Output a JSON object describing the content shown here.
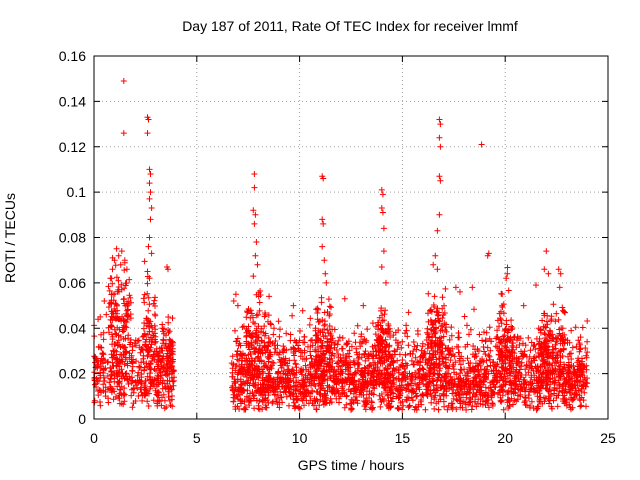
{
  "chart_data": {
    "type": "scatter",
    "title": "Day 187 of 2011, Rate Of TEC Index for receiver lmmf",
    "xlabel": "GPS time / hours",
    "ylabel": "ROTI / TECUs",
    "xlim": [
      0,
      24
    ],
    "ylim": [
      0,
      0.16
    ],
    "xticks": [
      "0",
      "5",
      "10",
      "15",
      "20",
      "25"
    ],
    "yticks": [
      "0",
      "0.02",
      "0.04",
      "0.06",
      "0.08",
      "0.1",
      "0.12",
      "0.14",
      "0.16"
    ],
    "grid": true,
    "marker": "+",
    "color": "#ff0000",
    "gaps_hours": [
      [
        3.9,
        6.7
      ]
    ],
    "points": [
      [
        1.45,
        0.149
      ],
      [
        1.45,
        0.126
      ],
      [
        2.6,
        0.133
      ],
      [
        2.65,
        0.132
      ],
      [
        2.6,
        0.126
      ],
      [
        2.7,
        0.11
      ],
      [
        2.75,
        0.108
      ],
      [
        2.7,
        0.104
      ],
      [
        2.75,
        0.1
      ],
      [
        2.7,
        0.097
      ],
      [
        2.8,
        0.093
      ],
      [
        2.75,
        0.088
      ],
      [
        2.7,
        0.08
      ],
      [
        2.65,
        0.076
      ],
      [
        2.8,
        0.073
      ],
      [
        2.6,
        0.065
      ],
      [
        2.7,
        0.062
      ],
      [
        3.55,
        0.067
      ],
      [
        3.6,
        0.066
      ],
      [
        1.1,
        0.075
      ],
      [
        1.2,
        0.072
      ],
      [
        1.0,
        0.07
      ],
      [
        1.3,
        0.068
      ],
      [
        1.35,
        0.074
      ],
      [
        1.5,
        0.07
      ],
      [
        0.9,
        0.066
      ],
      [
        0.8,
        0.062
      ],
      [
        1.6,
        0.066
      ],
      [
        0.5,
        0.052
      ],
      [
        0.3,
        0.045
      ],
      [
        0.2,
        0.044
      ],
      [
        0.6,
        0.046
      ],
      [
        7.8,
        0.108
      ],
      [
        7.8,
        0.102
      ],
      [
        7.75,
        0.092
      ],
      [
        7.85,
        0.09
      ],
      [
        7.8,
        0.086
      ],
      [
        7.9,
        0.078
      ],
      [
        7.85,
        0.072
      ],
      [
        7.95,
        0.068
      ],
      [
        7.75,
        0.063
      ],
      [
        6.9,
        0.055
      ],
      [
        6.8,
        0.052
      ],
      [
        7.0,
        0.05
      ],
      [
        11.1,
        0.107
      ],
      [
        11.15,
        0.106
      ],
      [
        11.1,
        0.088
      ],
      [
        11.15,
        0.086
      ],
      [
        11.1,
        0.076
      ],
      [
        11.2,
        0.07
      ],
      [
        11.25,
        0.064
      ],
      [
        11.3,
        0.06
      ],
      [
        14.0,
        0.101
      ],
      [
        14.05,
        0.099
      ],
      [
        14.0,
        0.093
      ],
      [
        14.05,
        0.091
      ],
      [
        14.1,
        0.084
      ],
      [
        14.1,
        0.074
      ],
      [
        14.0,
        0.067
      ],
      [
        14.2,
        0.06
      ],
      [
        16.8,
        0.132
      ],
      [
        16.85,
        0.13
      ],
      [
        16.8,
        0.124
      ],
      [
        16.85,
        0.12
      ],
      [
        16.8,
        0.107
      ],
      [
        16.85,
        0.105
      ],
      [
        16.8,
        0.09
      ],
      [
        16.7,
        0.083
      ],
      [
        16.6,
        0.072
      ],
      [
        16.5,
        0.068
      ],
      [
        16.7,
        0.066
      ],
      [
        18.85,
        0.121
      ],
      [
        19.2,
        0.073
      ],
      [
        19.15,
        0.072
      ],
      [
        18.4,
        0.058
      ],
      [
        20.1,
        0.064
      ],
      [
        20.05,
        0.062
      ],
      [
        22.0,
        0.074
      ],
      [
        21.9,
        0.066
      ],
      [
        22.1,
        0.064
      ],
      [
        22.6,
        0.066
      ],
      [
        22.7,
        0.064
      ],
      [
        22.65,
        0.058
      ],
      [
        9.7,
        0.05
      ],
      [
        12.2,
        0.053
      ],
      [
        13.1,
        0.05
      ],
      [
        15.3,
        0.047
      ],
      [
        17.6,
        0.058
      ],
      [
        17.8,
        0.056
      ],
      [
        21.5,
        0.059
      ],
      [
        20.9,
        0.05
      ],
      [
        23.2,
        0.029
      ],
      [
        23.5,
        0.025
      ],
      [
        8.4,
        0.005
      ],
      [
        10.7,
        0.006
      ],
      [
        12.5,
        0.004
      ],
      [
        15.7,
        0.004
      ],
      [
        18.1,
        0.004
      ],
      [
        21.2,
        0.005
      ],
      [
        23.7,
        0.006
      ]
    ],
    "clusters": [
      {
        "x": [
          0.0,
          3.9
        ],
        "y_center": 0.02,
        "y_spread": 0.013,
        "n": 420
      },
      {
        "x": [
          0.7,
          1.8
        ],
        "y_center": 0.045,
        "y_spread": 0.018,
        "n": 120
      },
      {
        "x": [
          2.4,
          3.0
        ],
        "y_center": 0.04,
        "y_spread": 0.016,
        "n": 60
      },
      {
        "x": [
          3.3,
          3.9
        ],
        "y_center": 0.03,
        "y_spread": 0.01,
        "n": 60
      },
      {
        "x": [
          6.7,
          24.0
        ],
        "y_center": 0.015,
        "y_spread": 0.01,
        "n": 1700
      },
      {
        "x": [
          6.7,
          24.0
        ],
        "y_center": 0.028,
        "y_spread": 0.012,
        "n": 700
      },
      {
        "x": [
          7.4,
          8.6
        ],
        "y_center": 0.035,
        "y_spread": 0.015,
        "n": 110
      },
      {
        "x": [
          10.7,
          11.6
        ],
        "y_center": 0.034,
        "y_spread": 0.014,
        "n": 90
      },
      {
        "x": [
          13.7,
          14.4
        ],
        "y_center": 0.034,
        "y_spread": 0.014,
        "n": 80
      },
      {
        "x": [
          16.2,
          17.2
        ],
        "y_center": 0.035,
        "y_spread": 0.015,
        "n": 110
      },
      {
        "x": [
          19.6,
          20.4
        ],
        "y_center": 0.035,
        "y_spread": 0.014,
        "n": 80
      },
      {
        "x": [
          21.6,
          22.9
        ],
        "y_center": 0.033,
        "y_spread": 0.014,
        "n": 110
      }
    ]
  }
}
